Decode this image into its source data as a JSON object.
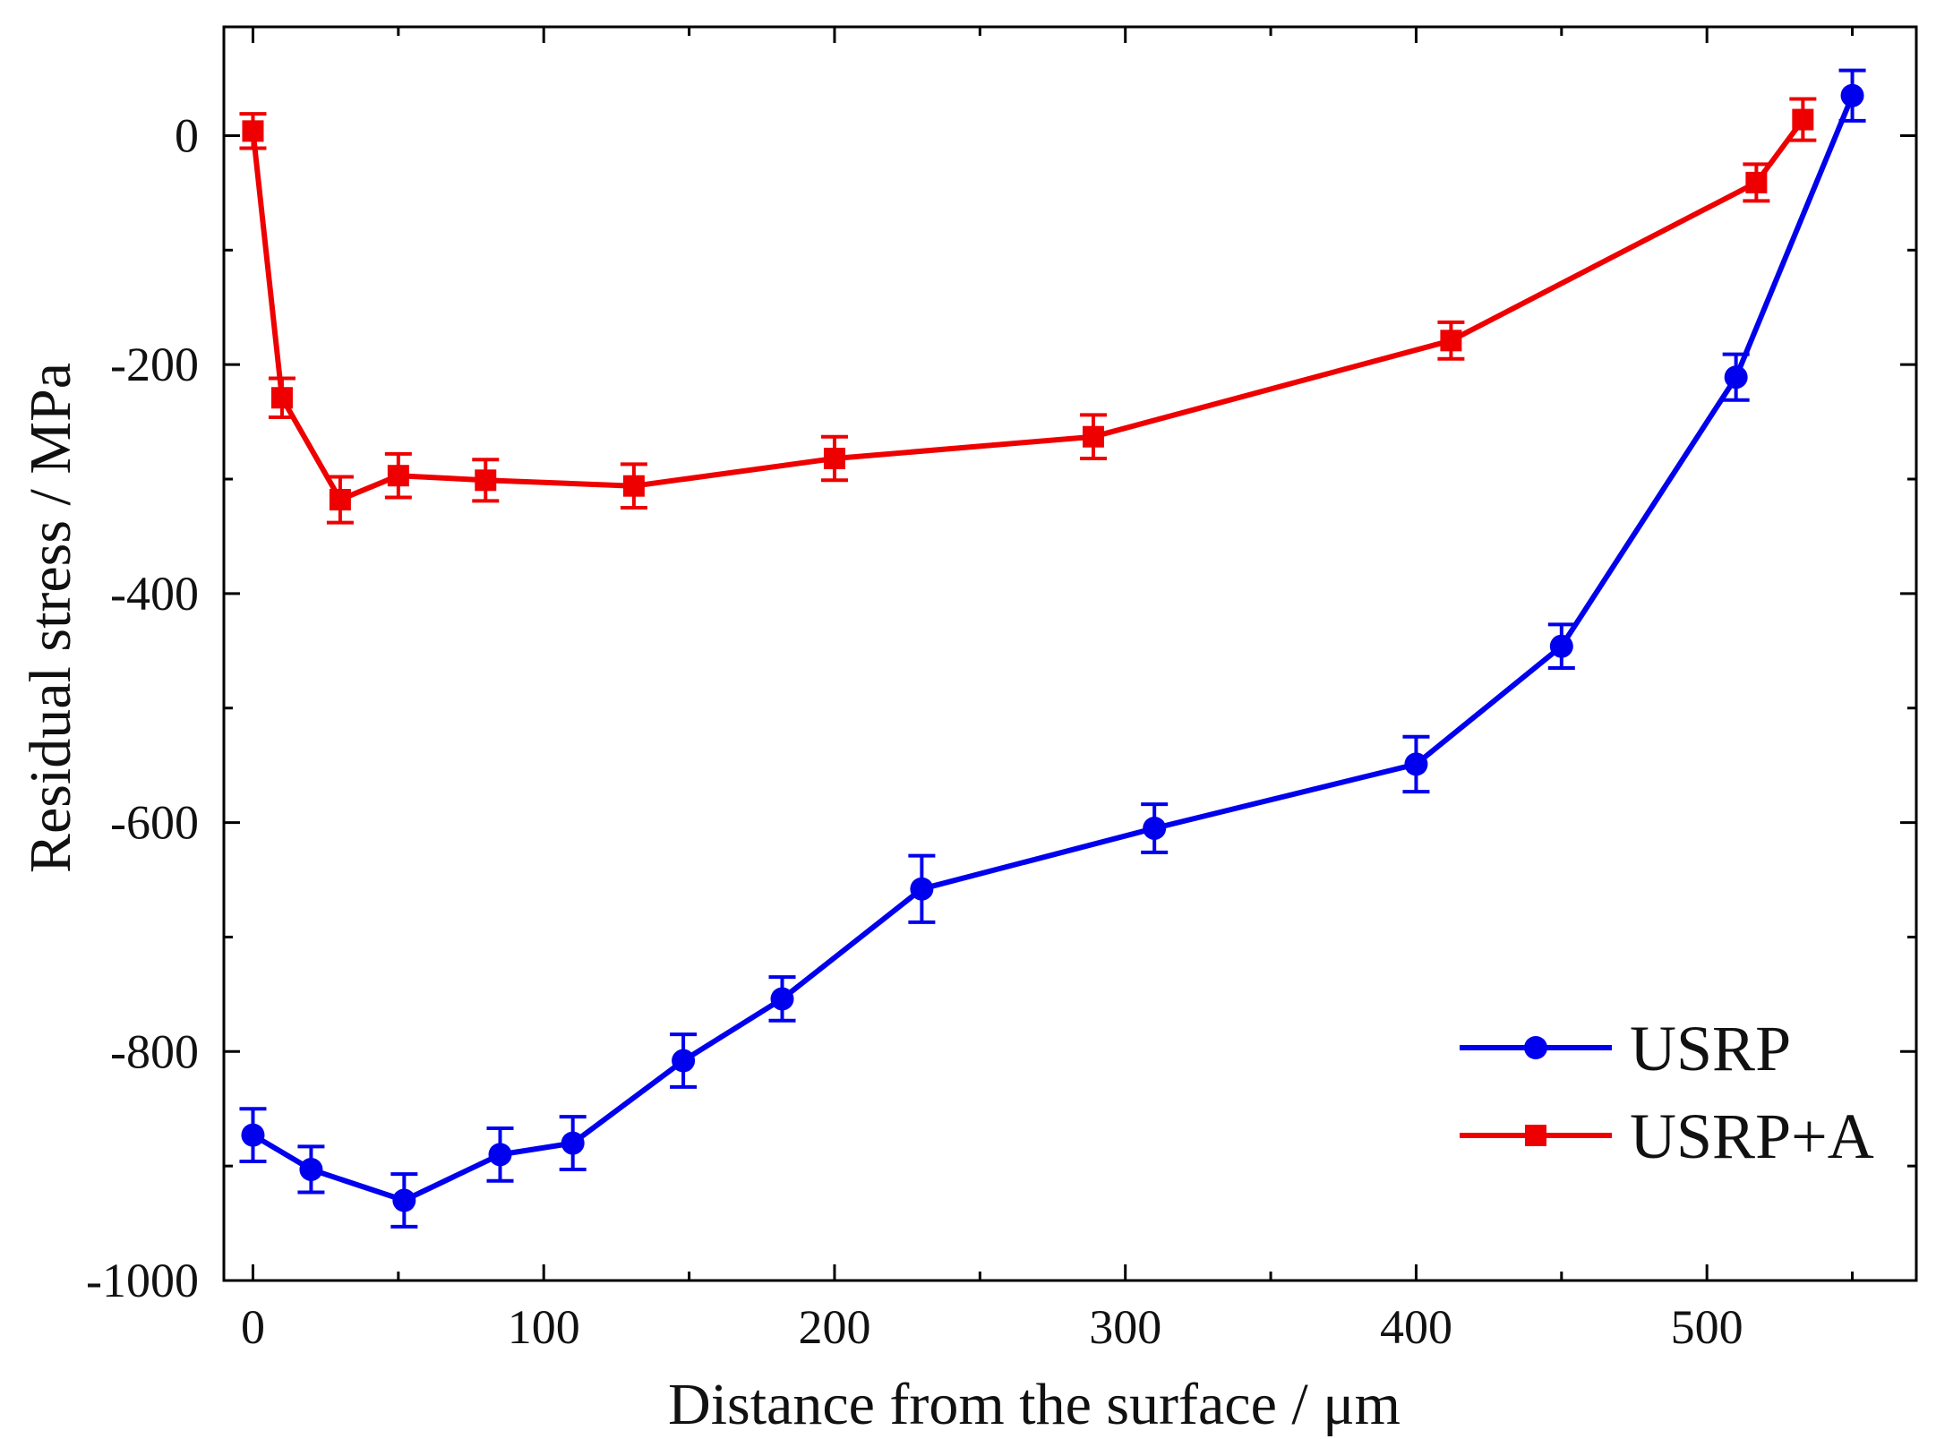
{
  "chart_data": {
    "type": "line",
    "title": "",
    "xlabel": "Distance from the surface / μm",
    "ylabel": "Residual stress / MPa",
    "xlim": [
      -10,
      572
    ],
    "ylim": [
      -1000,
      95
    ],
    "x_ticks": [
      0,
      100,
      200,
      300,
      400,
      500
    ],
    "x_tick_labels": [
      "0",
      "100",
      "200",
      "300",
      "400",
      "500"
    ],
    "y_ticks": [
      0,
      -200,
      -400,
      -600,
      -800,
      -1000
    ],
    "y_tick_labels": [
      "0",
      "-200",
      "-400",
      "-600",
      "-800",
      "-1000"
    ],
    "grid": false,
    "legend_position": "bottom-right",
    "series": [
      {
        "name": "USRP",
        "color": "#0000ee",
        "marker": "circle",
        "x": [
          0,
          20,
          52,
          85,
          110,
          148,
          182,
          230,
          310,
          400,
          450,
          510,
          550
        ],
        "values": [
          -873,
          -903,
          -930,
          -890,
          -880,
          -808,
          -754,
          -658,
          -605,
          -549,
          -446,
          -211,
          35
        ],
        "errors": [
          23,
          20,
          23,
          23,
          23,
          23,
          19,
          29,
          21,
          24,
          19,
          20,
          22
        ]
      },
      {
        "name": "USRP+A",
        "color": "#ee0000",
        "marker": "square",
        "x": [
          0,
          10,
          30,
          50,
          80,
          131,
          200,
          289,
          412,
          517,
          533
        ],
        "values": [
          4,
          -229,
          -318,
          -297,
          -301,
          -306,
          -282,
          -263,
          -179,
          -41,
          14
        ],
        "errors": [
          15,
          17,
          20,
          19,
          18,
          19,
          19,
          19,
          16,
          16,
          18
        ]
      }
    ]
  }
}
